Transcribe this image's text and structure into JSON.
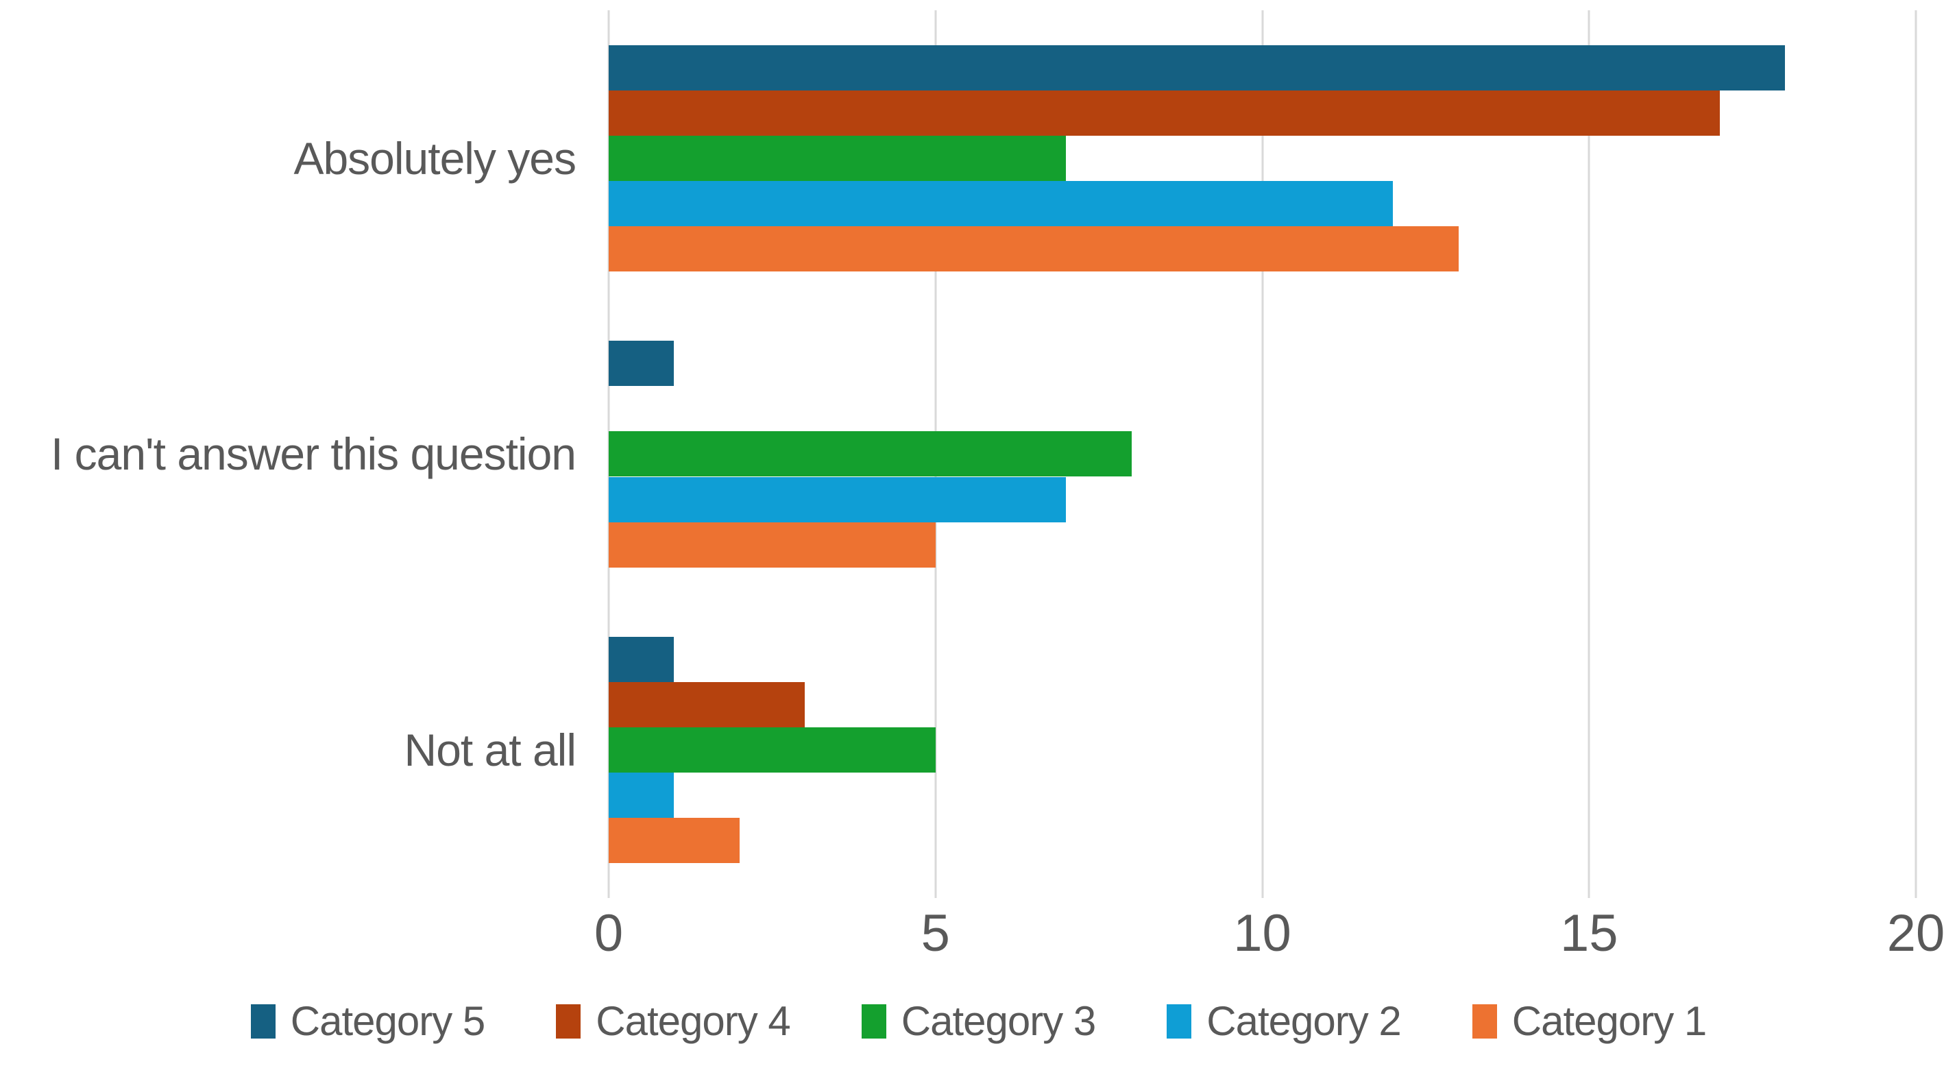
{
  "chart_data": {
    "type": "bar",
    "orientation": "horizontal",
    "title": "",
    "xlabel": "",
    "ylabel": "",
    "categories": [
      "Absolutely yes",
      "I can't answer this question",
      "Not at all"
    ],
    "series": [
      {
        "name": "Category 5",
        "color": "#156082",
        "values": [
          18,
          1,
          1
        ]
      },
      {
        "name": "Category 4",
        "color": "#B5420E",
        "values": [
          17,
          0,
          3
        ]
      },
      {
        "name": "Category 3",
        "color": "#14A02E",
        "values": [
          7,
          8,
          5
        ]
      },
      {
        "name": "Category 2",
        "color": "#0F9ED5",
        "values": [
          12,
          7,
          1
        ]
      },
      {
        "name": "Category 1",
        "color": "#ED7231",
        "values": [
          13,
          5,
          2
        ]
      }
    ],
    "series_order_top_to_bottom": [
      "Category 5",
      "Category 4",
      "Category 3",
      "Category 2",
      "Category 1"
    ],
    "xlim": [
      0,
      20
    ],
    "xticks": [
      0,
      5,
      10,
      15,
      20
    ],
    "grid": "vertical-major-only",
    "legend_position": "bottom",
    "legend_entries": [
      "Category 5",
      "Category 4",
      "Category 3",
      "Category 2",
      "Category 1"
    ]
  },
  "style": {
    "axis_text_color": "#595959",
    "gridline_color": "#D9D9D9",
    "background_color": "#FFFFFF"
  }
}
